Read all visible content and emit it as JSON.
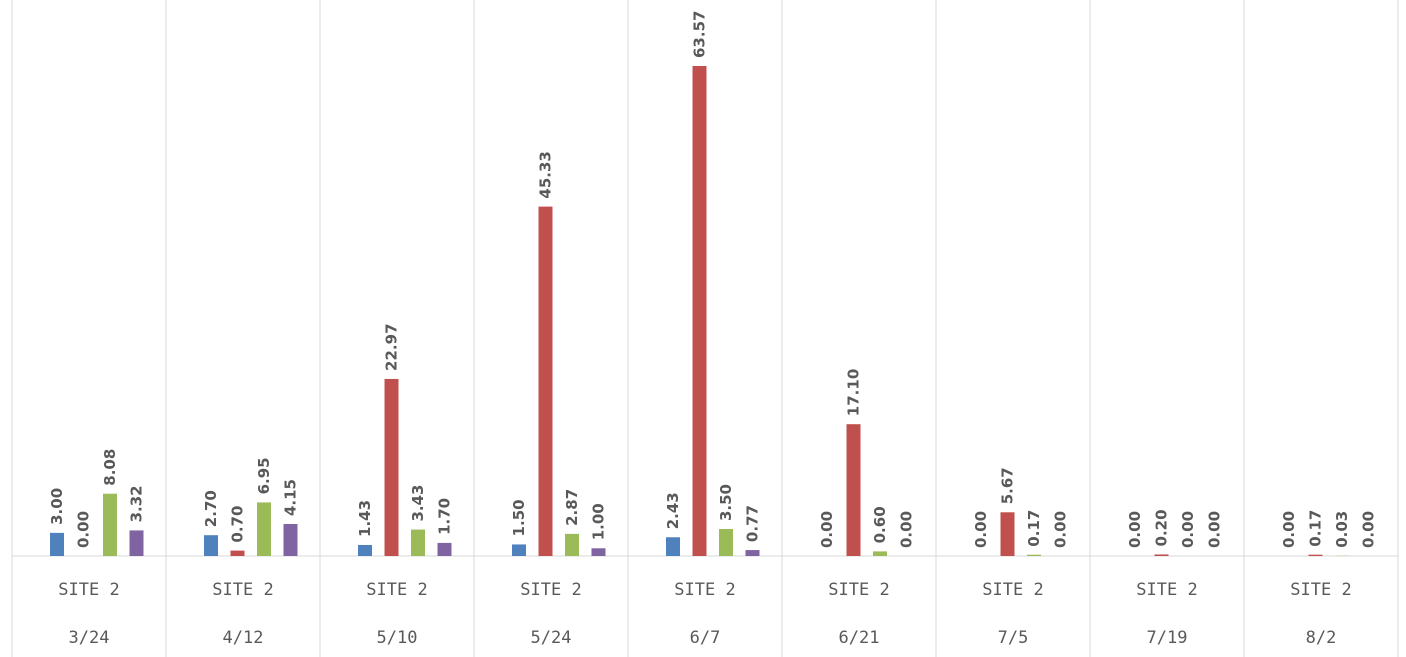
{
  "chart_data": {
    "type": "bar",
    "categories": [
      [
        "SITE 2",
        "3/24"
      ],
      [
        "SITE 2",
        "4/12"
      ],
      [
        "SITE 2",
        "5/10"
      ],
      [
        "SITE 2",
        "5/24"
      ],
      [
        "SITE 2",
        "6/7"
      ],
      [
        "SITE 2",
        "6/21"
      ],
      [
        "SITE 2",
        "7/5"
      ],
      [
        "SITE 2",
        "7/19"
      ],
      [
        "SITE 2",
        "8/2"
      ]
    ],
    "series": [
      {
        "values": [
          3.0,
          2.7,
          1.43,
          1.5,
          2.43,
          0.0,
          0.0,
          0.0,
          0.0
        ],
        "labels": [
          "3.00",
          "2.70",
          "1.43",
          "1.50",
          "2.43",
          "0.00",
          "0.00",
          "0.00",
          "0.00"
        ],
        "color": "#4f81bd"
      },
      {
        "values": [
          0.0,
          0.7,
          22.97,
          45.33,
          63.57,
          17.1,
          5.67,
          0.2,
          0.17
        ],
        "labels": [
          "0.00",
          "0.70",
          "22.97",
          "45.33",
          "63.57",
          "17.10",
          "5.67",
          "0.20",
          "0.17"
        ],
        "color": "#c0504d"
      },
      {
        "values": [
          8.08,
          6.95,
          3.43,
          2.87,
          3.5,
          0.6,
          0.17,
          0.0,
          0.03
        ],
        "labels": [
          "8.08",
          "6.95",
          "3.43",
          "2.87",
          "3.50",
          "0.60",
          "0.17",
          "0.00",
          "0.03"
        ],
        "color": "#9bbb59"
      },
      {
        "values": [
          3.32,
          4.15,
          1.7,
          1.0,
          0.77,
          0.0,
          0.0,
          0.0,
          0.0
        ],
        "labels": [
          "3.32",
          "4.15",
          "1.70",
          "1.00",
          "0.77",
          "0.00",
          "0.00",
          "0.00",
          "0.00"
        ],
        "color": "#8064a2"
      }
    ],
    "ylim": [
      0,
      70
    ],
    "grid": false,
    "legend": "none",
    "data_labels": "rotated vertical above bars"
  }
}
